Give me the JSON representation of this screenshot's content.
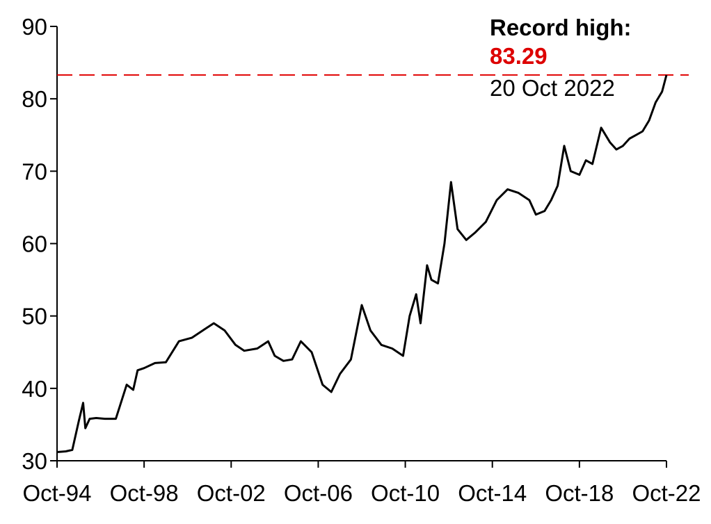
{
  "chart_data": {
    "type": "line",
    "title": "",
    "xlabel": "",
    "ylabel": "",
    "ylim": [
      30,
      90
    ],
    "yticks": [
      30,
      40,
      50,
      60,
      70,
      80,
      90
    ],
    "xticks": [
      "Oct-94",
      "Oct-98",
      "Oct-02",
      "Oct-06",
      "Oct-10",
      "Oct-14",
      "Oct-18",
      "Oct-22"
    ],
    "grid": false,
    "legend": "none",
    "series": [
      {
        "color": "#000000",
        "x": [
          1994.8,
          1995.2,
          1995.5,
          1995.8,
          1996.0,
          1996.1,
          1996.3,
          1996.6,
          1997.0,
          1997.5,
          1998.0,
          1998.3,
          1998.5,
          1998.8,
          1999.3,
          1999.8,
          2000.4,
          2001.0,
          2001.6,
          2002.0,
          2002.5,
          2003.0,
          2003.4,
          2004.0,
          2004.5,
          2004.8,
          2005.2,
          2005.6,
          2006.0,
          2006.5,
          2007.0,
          2007.4,
          2007.8,
          2008.3,
          2008.8,
          2009.2,
          2009.7,
          2010.2,
          2010.7,
          2011.0,
          2011.3,
          2011.5,
          2011.8,
          2012.0,
          2012.3,
          2012.6,
          2012.9,
          2013.2,
          2013.6,
          2014.0,
          2014.5,
          2015.0,
          2015.5,
          2016.0,
          2016.5,
          2016.8,
          2017.2,
          2017.5,
          2017.8,
          2018.1,
          2018.4,
          2018.8,
          2019.1,
          2019.4,
          2019.8,
          2020.2,
          2020.5,
          2020.8,
          2021.1,
          2021.4,
          2021.7,
          2022.0,
          2022.3,
          2022.6,
          2022.8
        ],
        "values": [
          31.2,
          31.3,
          31.5,
          35.5,
          38.0,
          34.5,
          35.8,
          35.9,
          35.8,
          35.8,
          40.5,
          39.8,
          42.5,
          42.8,
          43.5,
          43.6,
          46.5,
          47.0,
          48.2,
          49.0,
          48.0,
          46.0,
          45.2,
          45.5,
          46.5,
          44.5,
          43.8,
          44.0,
          46.5,
          45.0,
          40.5,
          39.5,
          42.0,
          44.0,
          51.5,
          48.0,
          46.0,
          45.5,
          44.5,
          50.0,
          53.0,
          49.0,
          57.0,
          55.0,
          54.5,
          60.0,
          68.5,
          62.0,
          60.5,
          61.5,
          63.0,
          66.0,
          67.5,
          67.0,
          66.0,
          64.0,
          64.5,
          66.0,
          68.0,
          73.5,
          70.0,
          69.5,
          71.5,
          71.0,
          76.0,
          74.0,
          73.0,
          73.5,
          74.5,
          75.0,
          75.5,
          77.0,
          79.5,
          81.0,
          83.29
        ]
      }
    ],
    "reference_line": {
      "value": 83.29,
      "color": "#e00000",
      "style": "dashed"
    },
    "annotation": {
      "title": "Record high:",
      "value_text": "83.29",
      "value_color": "#dd0000",
      "date": "20 Oct 2022"
    }
  }
}
